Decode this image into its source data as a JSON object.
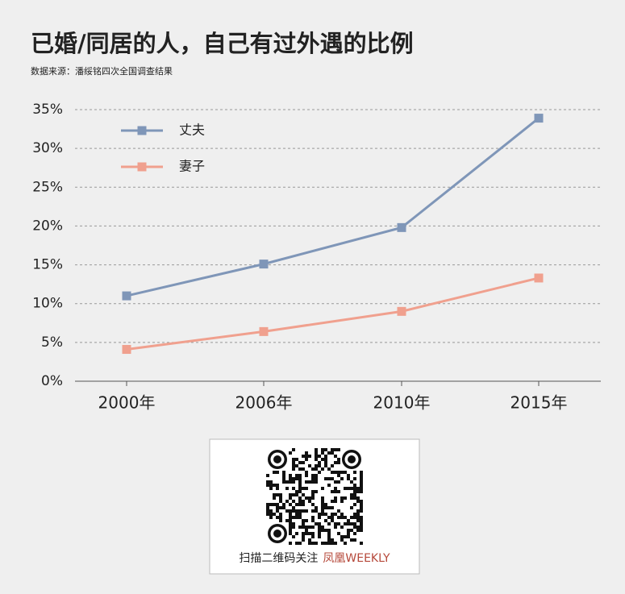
{
  "chart_data": {
    "type": "line",
    "title": "已婚/同居的人，自己有过外遇的比例",
    "subtitle": "数据来源：潘绥铭四次全国调查结果",
    "categories": [
      "2000年",
      "2006年",
      "2010年",
      "2015年"
    ],
    "series": [
      {
        "name": "丈夫",
        "color": "#7f96b8",
        "values": [
          11,
          15.1,
          19.8,
          33.9
        ]
      },
      {
        "name": "妻子",
        "color": "#f0a08e",
        "values": [
          4.1,
          6.4,
          9,
          13.3
        ]
      }
    ],
    "ylim": [
      0,
      35
    ],
    "yticks": [
      {
        "value": 0,
        "label": "0%"
      },
      {
        "value": 5,
        "label": "5%"
      },
      {
        "value": 10,
        "label": "10%"
      },
      {
        "value": 15,
        "label": "15%"
      },
      {
        "value": 20,
        "label": "20%"
      },
      {
        "value": 25,
        "label": "25%"
      },
      {
        "value": 30,
        "label": "30%"
      },
      {
        "value": 35,
        "label": "35%"
      }
    ],
    "grid": true
  },
  "footer": {
    "caption": "扫描二维码关注",
    "brand": "凤凰WEEKLY"
  }
}
